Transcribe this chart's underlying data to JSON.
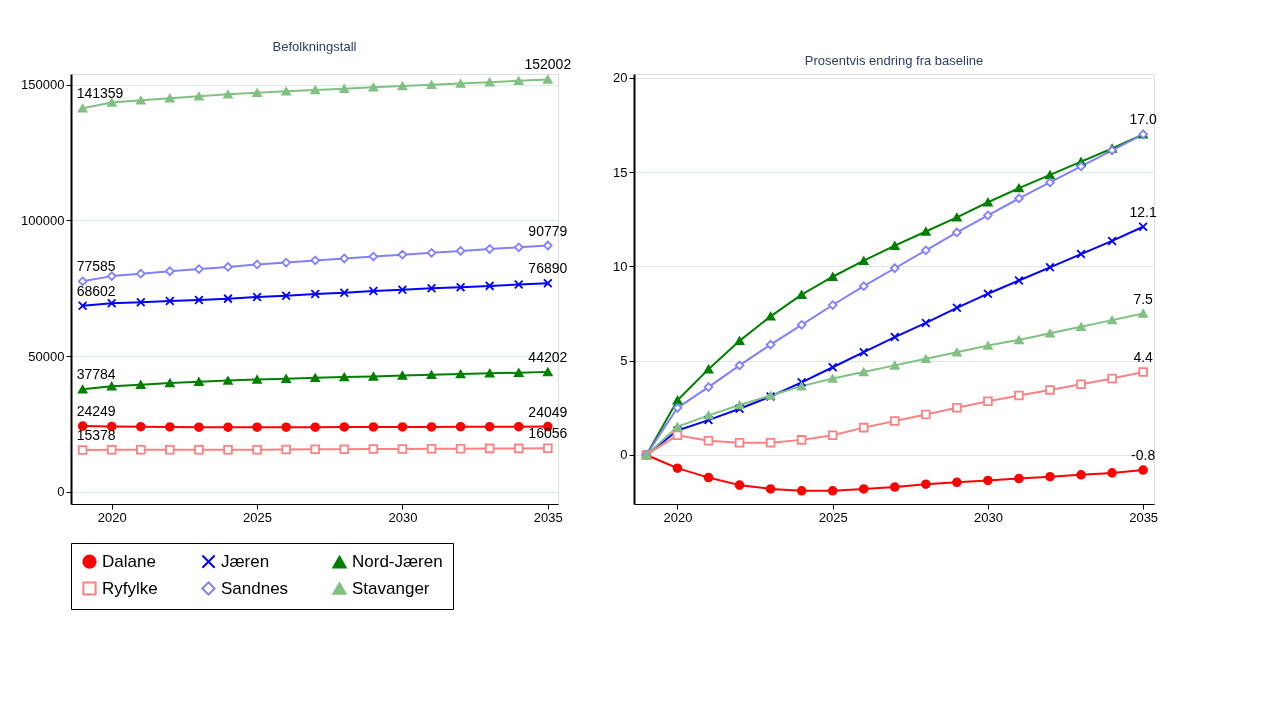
{
  "chart_data": [
    {
      "type": "line",
      "title": "Befolkningstall",
      "x": [
        2019,
        2020,
        2021,
        2022,
        2023,
        2024,
        2025,
        2026,
        2027,
        2028,
        2029,
        2030,
        2031,
        2032,
        2033,
        2034,
        2035
      ],
      "xlim": [
        2018.6,
        2035.35
      ],
      "xticks": [
        2020,
        2025,
        2030,
        2035
      ],
      "ylim": [
        -4500,
        154000
      ],
      "yticks": [
        0,
        50000,
        100000,
        150000
      ],
      "grid": "y",
      "legend": "bottom",
      "series": [
        {
          "name": "Dalane",
          "color": "#ff0000",
          "marker": "circle",
          "values": [
            24249,
            24100,
            24000,
            23900,
            23800,
            23800,
            23800,
            23800,
            23800,
            23900,
            23900,
            23900,
            23900,
            24000,
            24000,
            24000,
            24049
          ],
          "value_labels": [
            "24249",
            null,
            null,
            null,
            null,
            null,
            null,
            null,
            null,
            null,
            null,
            null,
            null,
            null,
            null,
            null,
            "24049"
          ]
        },
        {
          "name": "Jæren",
          "color": "#0000ff",
          "marker": "cross",
          "values": [
            68602,
            69500,
            69900,
            70300,
            70700,
            71200,
            71800,
            72300,
            72900,
            73400,
            74000,
            74500,
            75000,
            75400,
            75900,
            76400,
            76890
          ],
          "value_labels": [
            "68602",
            null,
            null,
            null,
            null,
            null,
            null,
            null,
            null,
            null,
            null,
            null,
            null,
            null,
            null,
            null,
            "76890"
          ]
        },
        {
          "name": "Nord-Jæren",
          "color": "#008000",
          "marker": "triangle",
          "values": [
            37784,
            38900,
            39500,
            40100,
            40600,
            41000,
            41400,
            41700,
            42000,
            42300,
            42500,
            42900,
            43100,
            43400,
            43700,
            43900,
            44202
          ],
          "value_labels": [
            "37784",
            null,
            null,
            null,
            null,
            null,
            null,
            null,
            null,
            null,
            null,
            null,
            null,
            null,
            null,
            null,
            "44202"
          ]
        },
        {
          "name": "Ryfylke",
          "color": "#ff8080",
          "marker": "square",
          "values": [
            15378,
            15500,
            15500,
            15500,
            15500,
            15500,
            15500,
            15600,
            15700,
            15700,
            15800,
            15800,
            15900,
            15900,
            16000,
            16000,
            16056
          ],
          "value_labels": [
            "15378",
            null,
            null,
            null,
            null,
            null,
            null,
            null,
            null,
            null,
            null,
            null,
            null,
            null,
            null,
            null,
            "16056"
          ]
        },
        {
          "name": "Sandnes",
          "color": "#8080ff",
          "marker": "diamond",
          "values": [
            77585,
            79500,
            80400,
            81300,
            82100,
            82900,
            83800,
            84500,
            85300,
            86000,
            86700,
            87400,
            88100,
            88800,
            89500,
            90100,
            90779
          ],
          "value_labels": [
            "77585",
            null,
            null,
            null,
            null,
            null,
            null,
            null,
            null,
            null,
            null,
            null,
            null,
            null,
            null,
            null,
            "90779"
          ]
        },
        {
          "name": "Stavanger",
          "color": "#80c080",
          "marker": "triangle",
          "values": [
            141359,
            143500,
            144300,
            145100,
            145800,
            146500,
            147100,
            147600,
            148100,
            148600,
            149100,
            149600,
            150000,
            150500,
            151000,
            151500,
            152002
          ],
          "value_labels": [
            "141359",
            null,
            null,
            null,
            null,
            null,
            null,
            null,
            null,
            null,
            null,
            null,
            null,
            null,
            null,
            null,
            "152002"
          ]
        }
      ]
    },
    {
      "type": "line",
      "title": "Prosentvis endring fra baseline",
      "x": [
        2019,
        2020,
        2021,
        2022,
        2023,
        2024,
        2025,
        2026,
        2027,
        2028,
        2029,
        2030,
        2031,
        2032,
        2033,
        2034,
        2035
      ],
      "xlim": [
        2018.6,
        2035.35
      ],
      "xticks": [
        2020,
        2025,
        2030,
        2035
      ],
      "ylim": [
        -2.6,
        20.2
      ],
      "yticks": [
        0,
        5,
        10,
        15,
        20
      ],
      "grid": "y",
      "legend": "bottom",
      "series": [
        {
          "name": "Dalane",
          "color": "#ff0000",
          "marker": "circle",
          "values": [
            0,
            -0.7,
            -1.2,
            -1.6,
            -1.8,
            -1.9,
            -1.9,
            -1.8,
            -1.7,
            -1.55,
            -1.45,
            -1.35,
            -1.25,
            -1.15,
            -1.05,
            -0.95,
            -0.8
          ],
          "value_labels": [
            null,
            null,
            null,
            null,
            null,
            null,
            null,
            null,
            null,
            null,
            null,
            null,
            null,
            null,
            null,
            null,
            "-0.8"
          ]
        },
        {
          "name": "Jæren",
          "color": "#0000ff",
          "marker": "cross",
          "values": [
            0,
            1.3,
            1.85,
            2.45,
            3.1,
            3.85,
            4.65,
            5.45,
            6.25,
            7.0,
            7.8,
            8.55,
            9.25,
            9.95,
            10.65,
            11.35,
            12.1
          ],
          "value_labels": [
            null,
            null,
            null,
            null,
            null,
            null,
            null,
            null,
            null,
            null,
            null,
            null,
            null,
            null,
            null,
            null,
            "12.1"
          ]
        },
        {
          "name": "Nord-Jæren",
          "color": "#008000",
          "marker": "triangle",
          "values": [
            0,
            2.9,
            4.55,
            6.05,
            7.35,
            8.5,
            9.45,
            10.3,
            11.1,
            11.85,
            12.6,
            13.4,
            14.15,
            14.85,
            15.55,
            16.25,
            17.0
          ],
          "value_labels": [
            null,
            null,
            null,
            null,
            null,
            null,
            null,
            null,
            null,
            null,
            null,
            null,
            null,
            null,
            null,
            null,
            "17.0"
          ]
        },
        {
          "name": "Ryfylke",
          "color": "#ff8080",
          "marker": "square",
          "values": [
            0,
            1.05,
            0.75,
            0.65,
            0.65,
            0.8,
            1.05,
            1.45,
            1.8,
            2.15,
            2.5,
            2.85,
            3.15,
            3.45,
            3.75,
            4.05,
            4.4
          ],
          "value_labels": [
            null,
            null,
            null,
            null,
            null,
            null,
            null,
            null,
            null,
            null,
            null,
            null,
            null,
            null,
            null,
            null,
            "4.4"
          ]
        },
        {
          "name": "Sandnes",
          "color": "#8080ff",
          "marker": "diamond",
          "values": [
            0,
            2.5,
            3.6,
            4.75,
            5.85,
            6.9,
            7.95,
            8.95,
            9.9,
            10.85,
            11.8,
            12.7,
            13.6,
            14.45,
            15.3,
            16.15,
            17.0
          ]
        },
        {
          "name": "Stavanger",
          "color": "#80c080",
          "marker": "triangle",
          "values": [
            0,
            1.5,
            2.1,
            2.65,
            3.15,
            3.65,
            4.05,
            4.4,
            4.75,
            5.1,
            5.45,
            5.8,
            6.1,
            6.45,
            6.8,
            7.15,
            7.5
          ],
          "value_labels": [
            null,
            null,
            null,
            null,
            null,
            null,
            null,
            null,
            null,
            null,
            null,
            null,
            null,
            null,
            null,
            null,
            "7.5"
          ]
        }
      ]
    }
  ]
}
